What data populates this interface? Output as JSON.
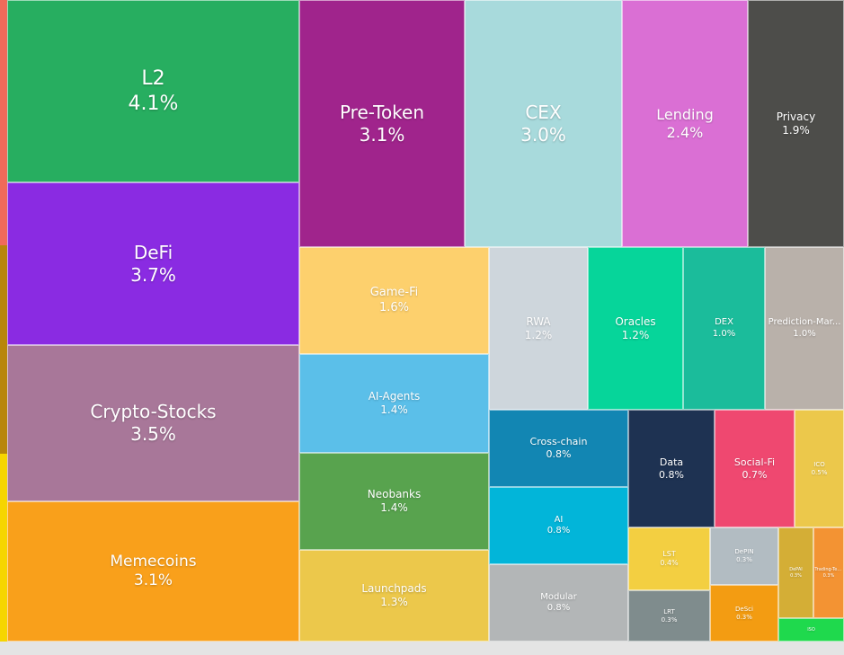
{
  "chart_data": {
    "type": "treemap",
    "unit": "%",
    "items": [
      {
        "label": "L2",
        "value": 4.1,
        "value_text": "4.1%",
        "color": "#27ae60"
      },
      {
        "label": "DeFi",
        "value": 3.7,
        "value_text": "3.7%",
        "color": "#8a2be2"
      },
      {
        "label": "Crypto-Stocks",
        "value": 3.5,
        "value_text": "3.5%",
        "color": "#a87799"
      },
      {
        "label": "Memecoins",
        "value": 3.1,
        "value_text": "3.1%",
        "color": "#f9a01b"
      },
      {
        "label": "Pre-Token",
        "value": 3.1,
        "value_text": "3.1%",
        "color": "#a0248c"
      },
      {
        "label": "CEX",
        "value": 3.0,
        "value_text": "3.0%",
        "color": "#a8dadc"
      },
      {
        "label": "Lending",
        "value": 2.4,
        "value_text": "2.4%",
        "color": "#da6fd4"
      },
      {
        "label": "Privacy",
        "value": 1.9,
        "value_text": "1.9%",
        "color": "#4d4d4a"
      },
      {
        "label": "Game-Fi",
        "value": 1.6,
        "value_text": "1.6%",
        "color": "#fdd06d"
      },
      {
        "label": "AI-Agents",
        "value": 1.4,
        "value_text": "1.4%",
        "color": "#5bbfe9"
      },
      {
        "label": "Neobanks",
        "value": 1.4,
        "value_text": "1.4%",
        "color": "#58a34e"
      },
      {
        "label": "Launchpads",
        "value": 1.3,
        "value_text": "1.3%",
        "color": "#ecc84b"
      },
      {
        "label": "RWA",
        "value": 1.2,
        "value_text": "1.2%",
        "color": "#ced6dc"
      },
      {
        "label": "Oracles",
        "value": 1.2,
        "value_text": "1.2%",
        "color": "#06d59a"
      },
      {
        "label": "DEX",
        "value": 1.0,
        "value_text": "1.0%",
        "color": "#1bbc9b"
      },
      {
        "label": "Prediction-Mar...",
        "value": 1.0,
        "value_text": "1.0%",
        "color": "#b9b1aa"
      },
      {
        "label": "Cross-chain",
        "value": 0.8,
        "value_text": "0.8%",
        "color": "#1286b3"
      },
      {
        "label": "AI",
        "value": 0.8,
        "value_text": "0.8%",
        "color": "#02b5d9"
      },
      {
        "label": "Modular",
        "value": 0.8,
        "value_text": "0.8%",
        "color": "#b3b6b7"
      },
      {
        "label": "Data",
        "value": 0.8,
        "value_text": "0.8%",
        "color": "#1e3252"
      },
      {
        "label": "Social-Fi",
        "value": 0.7,
        "value_text": "0.7%",
        "color": "#ef4870"
      },
      {
        "label": "ICO",
        "value": 0.5,
        "value_text": "0.5%",
        "color": "#ecc84b"
      },
      {
        "label": "LST",
        "value": 0.4,
        "value_text": "0.4%",
        "color": "#f3cf41"
      },
      {
        "label": "LRT",
        "value": 0.3,
        "value_text": "0.3%",
        "color": "#7f8c8d"
      },
      {
        "label": "DePIN",
        "value": 0.3,
        "value_text": "0.3%",
        "color": "#b2bcc2"
      },
      {
        "label": "DeSci",
        "value": 0.3,
        "value_text": "0.3%",
        "color": "#f39c12"
      },
      {
        "label": "DePAI",
        "value": 0.3,
        "value_text": "0.3%",
        "color": "#d4ae36"
      },
      {
        "label": "Trading-Termin...",
        "value": 0.3,
        "value_text": "0.3%",
        "color": "#f39333"
      },
      {
        "label": "ISO",
        "value": null,
        "value_text": "",
        "color": "#1fd94d"
      }
    ]
  }
}
